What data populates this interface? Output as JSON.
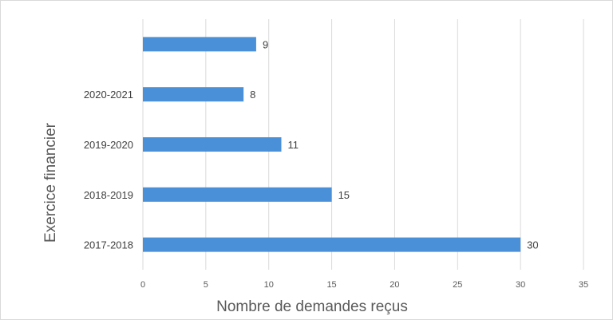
{
  "chart_data": {
    "type": "bar",
    "orientation": "horizontal",
    "categories": [
      "2017-2018",
      "2018-2019",
      "2019-2020",
      "2020-2021",
      ""
    ],
    "values": [
      30,
      15,
      11,
      8,
      9
    ],
    "data_labels": [
      "30",
      "15",
      "11",
      "8",
      "9"
    ],
    "x_ticks": [
      "0",
      "5",
      "10",
      "15",
      "20",
      "25",
      "30",
      "35"
    ],
    "xlabel": "Nombre de demandes reçus",
    "ylabel": "Exercice financier",
    "xlim": [
      0,
      35
    ],
    "grid": true,
    "legend": "none",
    "bar_color": "#4a90d9"
  }
}
